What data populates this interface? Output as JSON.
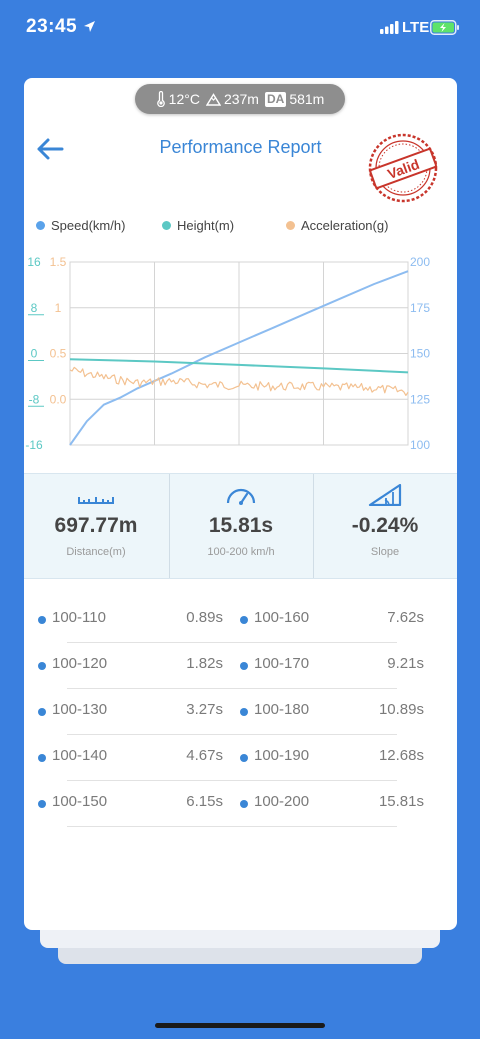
{
  "status_bar": {
    "time": "23:45",
    "network": "LTE"
  },
  "conditions": {
    "temperature": "12°C",
    "altitude": "237m",
    "density_altitude_badge": "DA",
    "density_altitude": "581m"
  },
  "header": {
    "title": "Performance Report",
    "stamp_text": "Valid"
  },
  "chart_data": {
    "type": "line",
    "series": [
      {
        "name": "Speed(km/h)",
        "color": "#8dbcf0",
        "axis": "right",
        "x": [
          0,
          0.05,
          0.1,
          0.15,
          0.2,
          0.3,
          0.4,
          0.5,
          0.6,
          0.7,
          0.8,
          0.9,
          1.0
        ],
        "values": [
          100,
          113,
          122,
          126,
          131,
          139,
          148,
          156,
          164,
          172,
          180,
          188,
          195
        ]
      },
      {
        "name": "Height(m)",
        "color": "#5cc8c4",
        "axis": "left-outer",
        "x": [
          0,
          0.25,
          0.5,
          0.75,
          1.0
        ],
        "values": [
          -1.0,
          -1.4,
          -2.0,
          -2.6,
          -3.3
        ]
      },
      {
        "name": "Acceleration(g)",
        "color": "#f3c191",
        "axis": "left-inner",
        "x": [
          0,
          0.1,
          0.2,
          0.3,
          0.4,
          0.5,
          0.6,
          0.7,
          0.8,
          0.9,
          1.0
        ],
        "values": [
          0.32,
          0.24,
          0.18,
          0.2,
          0.16,
          0.15,
          0.14,
          0.14,
          0.13,
          0.12,
          0.08
        ]
      }
    ],
    "axes": {
      "left_outer": {
        "ticks": [
          "16",
          "8",
          "0",
          "-8",
          "-16"
        ],
        "color": "#5cc8c4",
        "ylim": [
          -16,
          16
        ]
      },
      "left_inner": {
        "ticks": [
          "1.5",
          "1",
          "0.5",
          "0.0"
        ],
        "color": "#f3c191",
        "ylim": [
          -0.5,
          1.5
        ]
      },
      "right": {
        "ticks": [
          "200",
          "175",
          "150",
          "125",
          "100"
        ],
        "color": "#8dbcf0",
        "ylim": [
          100,
          200
        ]
      }
    },
    "grid": true
  },
  "stats": [
    {
      "value": "697.77m",
      "label": "Distance(m)",
      "icon": "ruler-icon"
    },
    {
      "value": "15.81s",
      "label": "100-200 km/h",
      "icon": "speedometer-icon"
    },
    {
      "value": "-0.24%",
      "label": "Slope",
      "icon": "slope-icon"
    }
  ],
  "splits": [
    {
      "left_range": "100-110",
      "left_time": "0.89s",
      "right_range": "100-160",
      "right_time": "7.62s"
    },
    {
      "left_range": "100-120",
      "left_time": "1.82s",
      "right_range": "100-170",
      "right_time": "9.21s"
    },
    {
      "left_range": "100-130",
      "left_time": "3.27s",
      "right_range": "100-180",
      "right_time": "10.89s"
    },
    {
      "left_range": "100-140",
      "left_time": "4.67s",
      "right_range": "100-190",
      "right_time": "12.68s"
    },
    {
      "left_range": "100-150",
      "left_time": "6.15s",
      "right_range": "100-200",
      "right_time": "15.81s"
    }
  ],
  "theme": {
    "background": "#3a7fdf",
    "accent": "#3a86d6",
    "stamp": "#c8352b"
  }
}
